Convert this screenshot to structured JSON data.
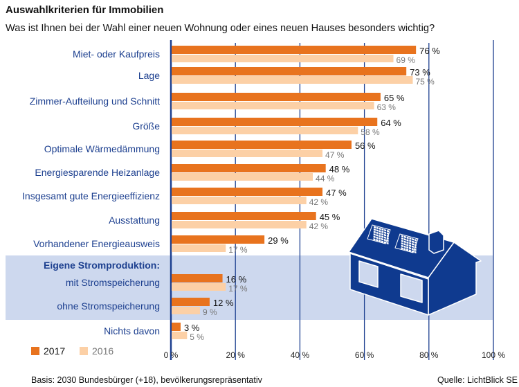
{
  "colors": {
    "y2017": "#e8731e",
    "y2016": "#fcd0a6",
    "grid": "#1c3f8f",
    "band": "#cdd8ee",
    "house": "#0f3a8f"
  },
  "chart_data": {
    "type": "bar",
    "orientation": "horizontal",
    "title": "Auswahlkriterien für Immobilien",
    "subtitle": "Was ist Ihnen bei der Wahl einer neuen Wohnung oder eines neuen Hauses besonders wichtig?",
    "group_header": "Eigene Stromproduktion:",
    "categories": [
      "Miet- oder Kaufpreis",
      "Lage",
      "Zimmer-Aufteilung und Schnitt",
      "Größe",
      "Optimale Wärmedämmung",
      "Energiesparende Heizanlage",
      "Insgesamt gute Energieeffizienz",
      "Ausstattung",
      "Vorhandener Energieausweis",
      "mit Stromspeicherung",
      "ohne Stromspeicherung",
      "Nichts davon"
    ],
    "series": [
      {
        "name": "2017",
        "values": [
          76,
          73,
          65,
          64,
          56,
          48,
          47,
          45,
          29,
          16,
          12,
          3
        ]
      },
      {
        "name": "2016",
        "values": [
          69,
          75,
          63,
          58,
          47,
          44,
          42,
          42,
          17,
          17,
          9,
          5
        ]
      }
    ],
    "value_labels": {
      "2017": [
        "76 %",
        "73 %",
        "65 %",
        "64 %",
        "56 %",
        "48 %",
        "47 %",
        "45 %",
        "29 %",
        "16 %",
        "12 %",
        "3 %"
      ],
      "2016": [
        "69 %",
        "75 %",
        "63 %",
        "58 %",
        "47 %",
        "44 %",
        "42 %",
        "42 %",
        "17 %",
        "17 %",
        "9 %",
        "5 %"
      ]
    },
    "xlim": [
      0,
      100
    ],
    "xticks": [
      0,
      20,
      40,
      60,
      80,
      100
    ],
    "xtick_labels": [
      "0 %",
      "20 %",
      "40 %",
      "60 %",
      "80 %",
      "100 %"
    ],
    "legend": [
      "2017",
      "2016"
    ],
    "legend_position": "bottom-left",
    "grid": true
  },
  "footer": {
    "basis": "Basis: 2030 Bundesbürger (+18), bevölkerungsrepräsentativ",
    "source": "Quelle: LichtBlick SE"
  }
}
